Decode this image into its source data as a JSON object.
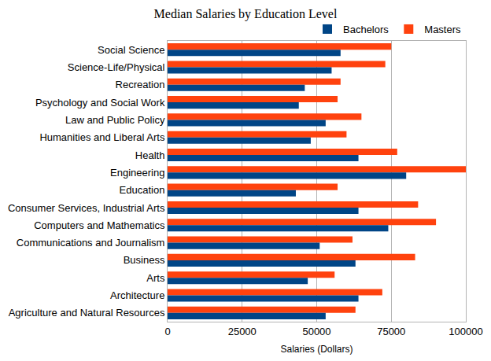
{
  "chart_data": {
    "type": "bar",
    "orientation": "horizontal",
    "title": "Median Salaries by Education Level",
    "x_label": "Salaries (Dollars)",
    "categories": [
      "Social Science",
      "Science-Life/Physical",
      "Recreation",
      "Psychology and Social Work",
      "Law and Public Policy",
      "Humanities and Liberal Arts",
      "Health",
      "Engineering",
      "Education",
      "Consumer Services, Industrial Arts",
      "Computers and Mathematics",
      "Communications and Journalism",
      "Business",
      "Arts",
      "Architecture",
      "Agriculture and Natural Resources"
    ],
    "series": [
      {
        "name": "Bachelors",
        "color": "#004586",
        "values": [
          58000,
          55000,
          46000,
          44000,
          53000,
          48000,
          64000,
          80000,
          43000,
          64000,
          74000,
          51000,
          63000,
          47000,
          64000,
          53000
        ]
      },
      {
        "name": "Masters",
        "color": "#ff420e",
        "values": [
          75000,
          73000,
          58000,
          57000,
          65000,
          60000,
          77000,
          100000,
          57000,
          84000,
          90000,
          62000,
          83000,
          56000,
          72000,
          63000
        ]
      }
    ],
    "xlim": [
      0,
      100000
    ],
    "xticks": [
      0,
      25000,
      50000,
      75000,
      100000
    ],
    "grid": true,
    "legend": "upper right"
  }
}
